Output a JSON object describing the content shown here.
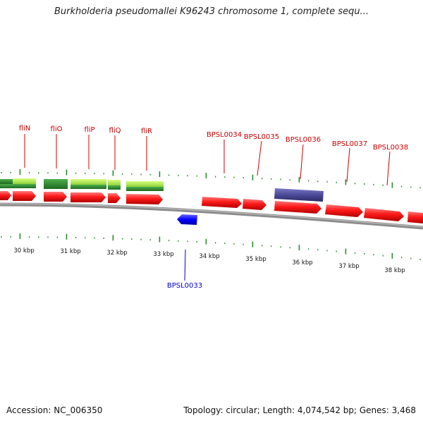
{
  "title": "Burkholderia pseudomallei K96243 chromosome 1, complete sequ...",
  "footer": {
    "accession": "Accession: NC_006350",
    "topology": "Topology: circular; Length: 4,074,542 bp; Genes: 3,468"
  },
  "colors": {
    "red_gene": "#ff0000",
    "red_label": "#cc0000",
    "blue_gene": "#0000ff",
    "blue_label": "#0000cc",
    "purple_feature": "#4b4a96",
    "green_dark": "#2f8a2f",
    "green_light": "#a7ea4a",
    "tick_green": "#2a8a2a",
    "backbone": "#808080"
  },
  "kbp_labels": [
    "30 kbp",
    "31 kbp",
    "32 kbp",
    "33 kbp",
    "34 kbp",
    "35 kbp",
    "36 kbp",
    "37 kbp",
    "38 kbp"
  ],
  "gene_labels": [
    {
      "name": "fliN",
      "strand": "forward"
    },
    {
      "name": "fliO",
      "strand": "forward"
    },
    {
      "name": "fliP",
      "strand": "forward"
    },
    {
      "name": "fliQ",
      "strand": "forward"
    },
    {
      "name": "fliR",
      "strand": "forward"
    },
    {
      "name": "BPSL0034",
      "strand": "forward"
    },
    {
      "name": "BPSL0035",
      "strand": "forward"
    },
    {
      "name": "BPSL0036",
      "strand": "forward"
    },
    {
      "name": "BPSL0037",
      "strand": "forward"
    },
    {
      "name": "BPSL0038",
      "strand": "forward"
    },
    {
      "name": "BPSL0033",
      "strand": "reverse"
    }
  ]
}
